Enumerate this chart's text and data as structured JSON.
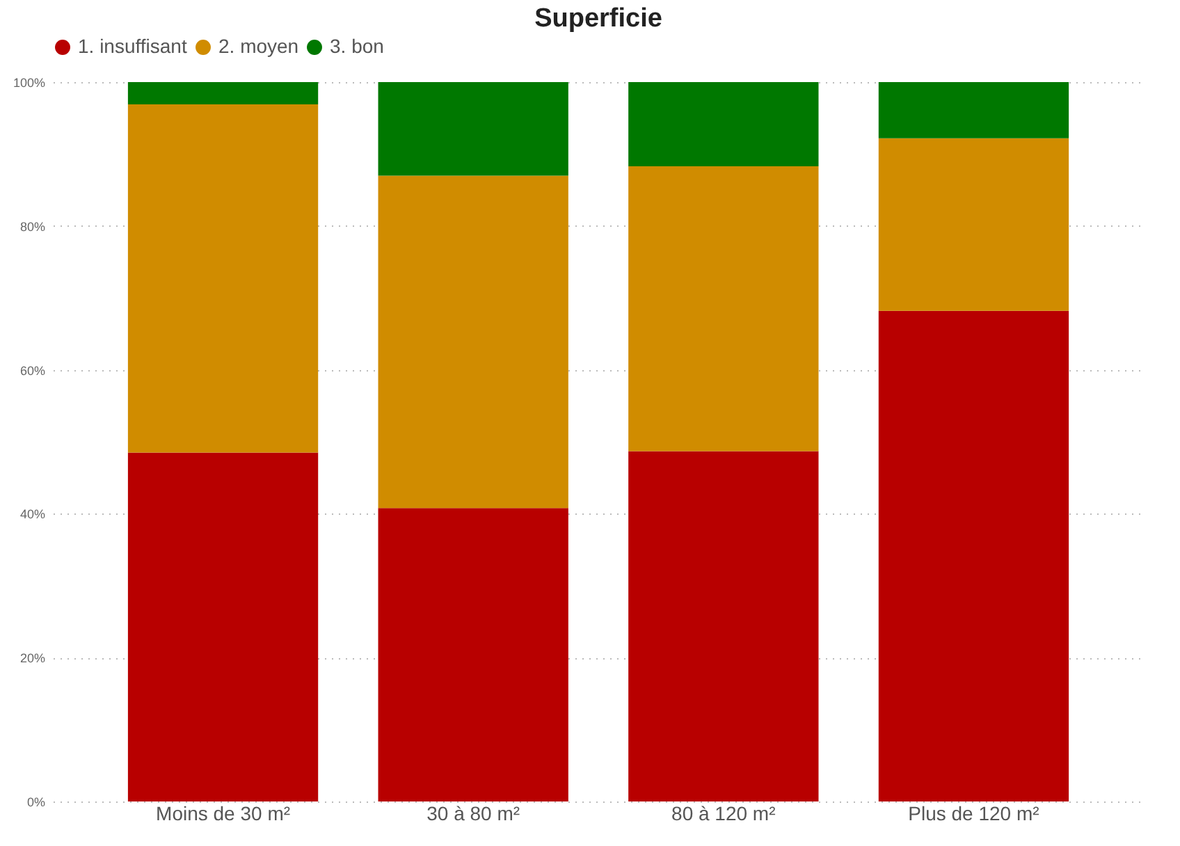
{
  "chart_data": {
    "type": "bar",
    "title": "Superficie",
    "stacked": true,
    "legend": "top",
    "grid": "y",
    "categories": [
      "Moins de 30 m²",
      "30 à 80 m²",
      "80 à 120 m²",
      "Plus de 120 m²"
    ],
    "series": [
      {
        "name": "1. insuffisant",
        "color": "#b80000",
        "values": [
          48.5,
          40.8,
          48.7,
          68.2
        ]
      },
      {
        "name": "2. moyen",
        "color": "#d08c00",
        "values": [
          48.4,
          46.2,
          39.6,
          24.0
        ]
      },
      {
        "name": "3. bon",
        "color": "#007800",
        "values": [
          3.1,
          13.0,
          11.7,
          7.8
        ]
      }
    ],
    "ylim": [
      0,
      100
    ],
    "yticks": [
      {
        "value": 0,
        "label": "0%"
      },
      {
        "value": 20,
        "label": "20%"
      },
      {
        "value": 40,
        "label": "40%"
      },
      {
        "value": 60,
        "label": "60%"
      },
      {
        "value": 80,
        "label": "80%"
      },
      {
        "value": 100,
        "label": "100%"
      }
    ]
  }
}
